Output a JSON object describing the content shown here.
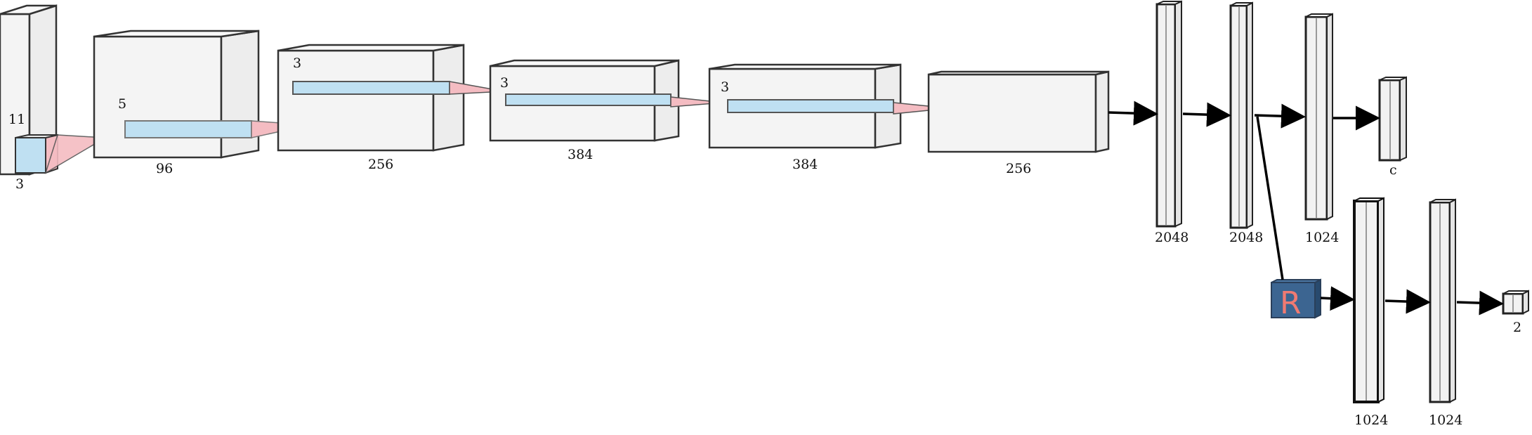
{
  "conv_blocks": [
    {
      "id": "input",
      "size_label": "3",
      "kernel_label": "11"
    },
    {
      "id": "conv1",
      "size_label": "96",
      "kernel_label": "5"
    },
    {
      "id": "conv2",
      "size_label": "256",
      "kernel_label": "3"
    },
    {
      "id": "conv3",
      "size_label": "384",
      "kernel_label": "3"
    },
    {
      "id": "conv4",
      "size_label": "384",
      "kernel_label": "3"
    },
    {
      "id": "conv5",
      "size_label": "256"
    }
  ],
  "fc_layers": [
    {
      "id": "fc1",
      "label": "2048"
    },
    {
      "id": "fc2",
      "label": "2048"
    },
    {
      "id": "fc3",
      "label": "1024"
    },
    {
      "id": "out-class",
      "label": "c"
    }
  ],
  "branch_layers": [
    {
      "id": "fcb1",
      "label": "1024"
    },
    {
      "id": "fcb2",
      "label": "1024"
    },
    {
      "id": "out-branch",
      "label": "2"
    }
  ],
  "reversal_layer": {
    "glyph": "R",
    "color": "#2f557f",
    "text_color": "#f07a72"
  },
  "colors": {
    "edge": "#000000",
    "face": "#f0f0f0",
    "kernel_fill": "#bfe0f2",
    "pyramid_fill": "#f4bcc2"
  }
}
